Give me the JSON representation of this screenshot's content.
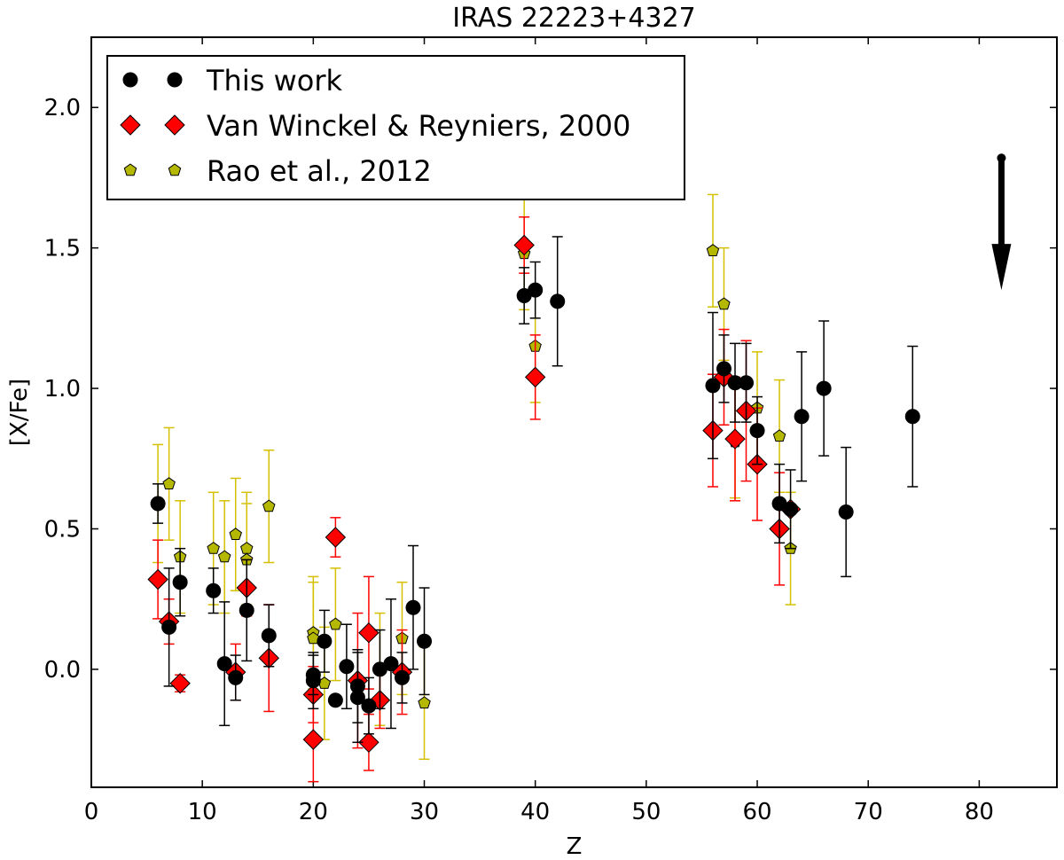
{
  "chart_data": {
    "type": "scatter",
    "title": "IRAS 22223+4327",
    "xlabel": "Z",
    "ylabel": "[X/Fe]",
    "xlim": [
      0,
      87
    ],
    "ylim": [
      -0.42,
      2.25
    ],
    "xticks": [
      "0",
      "10",
      "20",
      "30",
      "40",
      "50",
      "60",
      "70",
      "80"
    ],
    "yticks": [
      "0.0",
      "0.5",
      "1.0",
      "1.5",
      "2.0"
    ],
    "grid": false,
    "legend_position": "top-left",
    "series": [
      {
        "name": "This work",
        "marker": "circle",
        "color": "#000000",
        "errcolor": "#000000",
        "points": [
          {
            "x": 6,
            "y": 0.59,
            "err": 0.07
          },
          {
            "x": 7,
            "y": 0.15,
            "err": 0.21
          },
          {
            "x": 8,
            "y": 0.31,
            "err": 0.12
          },
          {
            "x": 11,
            "y": 0.28,
            "err": 0.08
          },
          {
            "x": 12,
            "y": 0.02,
            "err": 0.22
          },
          {
            "x": 13,
            "y": -0.03,
            "err": 0.08
          },
          {
            "x": 14,
            "y": 0.21,
            "err": 0.18
          },
          {
            "x": 16,
            "y": 0.12,
            "err": 0.11
          },
          {
            "x": 20,
            "y": -0.02,
            "err": 0.07
          },
          {
            "x": 20,
            "y": -0.04,
            "err": 0.1
          },
          {
            "x": 21,
            "y": 0.1,
            "err": 0.11
          },
          {
            "x": 22,
            "y": -0.11,
            "err": 0.0
          },
          {
            "x": 23,
            "y": 0.01,
            "err": 0.15
          },
          {
            "x": 24,
            "y": -0.06,
            "err": 0.13
          },
          {
            "x": 24,
            "y": -0.1,
            "err": 0.16
          },
          {
            "x": 25,
            "y": -0.13,
            "err": 0.1
          },
          {
            "x": 26,
            "y": 0.0,
            "err": 0.14
          },
          {
            "x": 27,
            "y": 0.02,
            "err": 0.23
          },
          {
            "x": 28,
            "y": -0.03,
            "err": 0.09
          },
          {
            "x": 29,
            "y": 0.22,
            "err": 0.22
          },
          {
            "x": 30,
            "y": 0.1,
            "err": 0.19
          },
          {
            "x": 39,
            "y": 1.33,
            "err": 0.1
          },
          {
            "x": 40,
            "y": 1.35,
            "err": 0.1
          },
          {
            "x": 42,
            "y": 1.31,
            "err": 0.23
          },
          {
            "x": 56,
            "y": 1.01,
            "err": 0.26
          },
          {
            "x": 57,
            "y": 1.07,
            "err": 0.12
          },
          {
            "x": 58,
            "y": 1.02,
            "err": 0.14
          },
          {
            "x": 59,
            "y": 1.02,
            "err": 0.14
          },
          {
            "x": 60,
            "y": 0.85,
            "err": 0.12
          },
          {
            "x": 62,
            "y": 0.59,
            "err": 0.14
          },
          {
            "x": 63,
            "y": 0.57,
            "err": 0.14
          },
          {
            "x": 64,
            "y": 0.9,
            "err": 0.23
          },
          {
            "x": 66,
            "y": 1.0,
            "err": 0.24
          },
          {
            "x": 68,
            "y": 0.56,
            "err": 0.23
          },
          {
            "x": 74,
            "y": 0.9,
            "err": 0.25
          }
        ]
      },
      {
        "name": "Van Winckel & Reyniers, 2000",
        "marker": "diamond",
        "color": "#ff0000",
        "errcolor": "#ff0000",
        "points": [
          {
            "x": 6,
            "y": 0.32,
            "err": 0.14
          },
          {
            "x": 7,
            "y": 0.17,
            "err": 0.08
          },
          {
            "x": 8,
            "y": -0.05,
            "err": 0.03
          },
          {
            "x": 13,
            "y": -0.01,
            "err": 0.1
          },
          {
            "x": 14,
            "y": 0.29,
            "err": 0.1
          },
          {
            "x": 16,
            "y": 0.04,
            "err": 0.19
          },
          {
            "x": 20,
            "y": -0.09,
            "err": 0.1
          },
          {
            "x": 20,
            "y": -0.25,
            "err": 0.15
          },
          {
            "x": 22,
            "y": 0.47,
            "err": 0.07
          },
          {
            "x": 24,
            "y": -0.04,
            "err": 0.24
          },
          {
            "x": 25,
            "y": 0.13,
            "err": 0.2
          },
          {
            "x": 25,
            "y": -0.26,
            "err": 0.1
          },
          {
            "x": 26,
            "y": -0.11,
            "err": 0.1
          },
          {
            "x": 28,
            "y": -0.01,
            "err": 0.15
          },
          {
            "x": 39,
            "y": 1.51,
            "err": 0.1
          },
          {
            "x": 40,
            "y": 1.04,
            "err": 0.15
          },
          {
            "x": 56,
            "y": 0.85,
            "err": 0.2
          },
          {
            "x": 57,
            "y": 1.04,
            "err": 0.17
          },
          {
            "x": 58,
            "y": 0.82,
            "err": 0.22
          },
          {
            "x": 59,
            "y": 0.92,
            "err": 0.25
          },
          {
            "x": 60,
            "y": 0.73,
            "err": 0.2
          },
          {
            "x": 62,
            "y": 0.5,
            "err": 0.2
          },
          {
            "x": 63,
            "y": 0.57,
            "err": 0.0
          }
        ]
      },
      {
        "name": "Rao et al., 2012",
        "marker": "pentagon",
        "color": "#b5b800",
        "errcolor": "#d4c000",
        "points": [
          {
            "x": 6,
            "y": 0.59,
            "err": 0.21
          },
          {
            "x": 7,
            "y": 0.66,
            "err": 0.2
          },
          {
            "x": 8,
            "y": 0.4,
            "err": 0.2
          },
          {
            "x": 11,
            "y": 0.43,
            "err": 0.2
          },
          {
            "x": 12,
            "y": 0.4,
            "err": 0.2
          },
          {
            "x": 13,
            "y": 0.48,
            "err": 0.2
          },
          {
            "x": 14,
            "y": 0.43,
            "err": 0.2
          },
          {
            "x": 14,
            "y": 0.39,
            "err": 0.2
          },
          {
            "x": 16,
            "y": 0.58,
            "err": 0.2
          },
          {
            "x": 20,
            "y": 0.13,
            "err": 0.2
          },
          {
            "x": 20,
            "y": 0.11,
            "err": 0.2
          },
          {
            "x": 21,
            "y": -0.05,
            "err": 0.2
          },
          {
            "x": 22,
            "y": 0.16,
            "err": 0.2
          },
          {
            "x": 26,
            "y": 0.0,
            "err": 0.2
          },
          {
            "x": 28,
            "y": 0.11,
            "err": 0.2
          },
          {
            "x": 30,
            "y": -0.12,
            "err": 0.2
          },
          {
            "x": 39,
            "y": 1.48,
            "err": 0.2
          },
          {
            "x": 40,
            "y": 1.15,
            "err": 0.2
          },
          {
            "x": 56,
            "y": 1.49,
            "err": 0.2
          },
          {
            "x": 57,
            "y": 1.3,
            "err": 0.2
          },
          {
            "x": 58,
            "y": 0.81,
            "err": 0.2
          },
          {
            "x": 60,
            "y": 0.93,
            "err": 0.2
          },
          {
            "x": 62,
            "y": 0.83,
            "err": 0.2
          },
          {
            "x": 63,
            "y": 0.43,
            "err": 0.2
          }
        ]
      }
    ],
    "annotations": [
      {
        "type": "upper-limit-arrow",
        "x": 82,
        "y": 1.82,
        "y_end": 1.35
      }
    ]
  }
}
